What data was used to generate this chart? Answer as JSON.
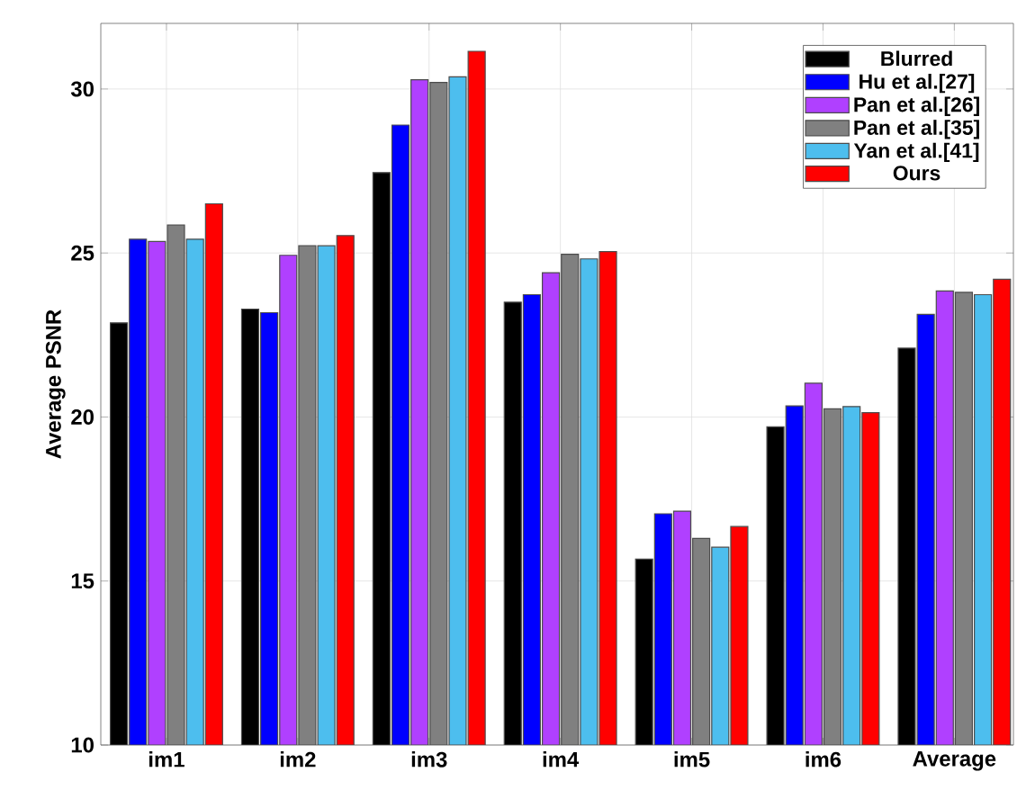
{
  "chart_data": {
    "type": "bar",
    "ylabel": "Average PSNR",
    "categories": [
      "im1",
      "im2",
      "im3",
      "im4",
      "im5",
      "im6",
      "Average"
    ],
    "series": [
      {
        "name": "Blurred",
        "color": "#000000",
        "values": [
          22.87,
          23.29,
          27.45,
          23.5,
          15.67,
          19.7,
          22.1
        ]
      },
      {
        "name": "Hu et al.[27]",
        "color": "#0000ff",
        "values": [
          25.42,
          23.18,
          28.9,
          23.73,
          17.05,
          20.34,
          23.13
        ]
      },
      {
        "name": "Pan et al.[26]",
        "color": "#b040ff",
        "values": [
          25.35,
          24.93,
          30.28,
          24.4,
          17.13,
          21.03,
          23.84
        ]
      },
      {
        "name": "Pan et al.[35]",
        "color": "#808080",
        "values": [
          25.85,
          25.22,
          30.2,
          24.96,
          16.3,
          20.25,
          23.8
        ]
      },
      {
        "name": "Yan et al.[41]",
        "color": "#4dbeee",
        "values": [
          25.42,
          25.22,
          30.37,
          24.82,
          16.03,
          20.32,
          23.73
        ]
      },
      {
        "name": "Ours",
        "color": "#ff0000",
        "values": [
          26.5,
          25.53,
          31.15,
          25.04,
          16.66,
          20.13,
          24.2
        ]
      }
    ],
    "ylim": [
      10,
      32
    ],
    "yticks": [
      10,
      15,
      20,
      25,
      30
    ],
    "grid": true,
    "legend": "top right"
  }
}
